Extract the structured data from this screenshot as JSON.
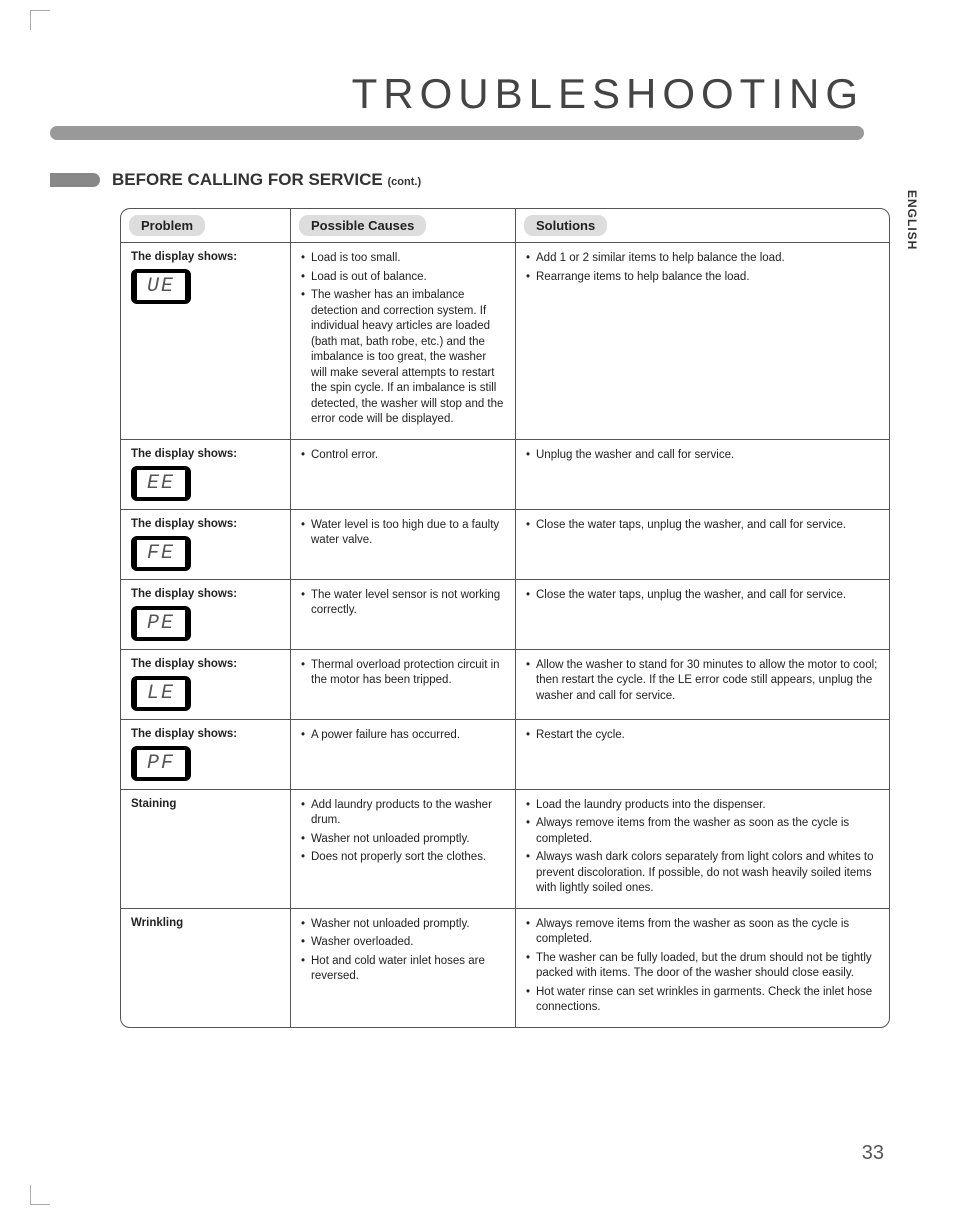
{
  "page": {
    "title": "TROUBLESHOOTING",
    "section_title": "BEFORE CALLING FOR SERVICE",
    "section_cont": "(cont.)",
    "side_tab": "ENGLISH",
    "page_number": "33"
  },
  "table": {
    "headers": {
      "problem": "Problem",
      "causes": "Possible Causes",
      "solutions": "Solutions"
    },
    "rows": [
      {
        "problem_label": "The display shows:",
        "error_code": "UE",
        "causes": [
          "Load is too small.",
          "Load is out of balance.",
          "The washer has an imbalance detection and correction system. If individual heavy articles are loaded (bath mat, bath robe, etc.) and the imbalance is too great, the washer will make several attempts to restart the spin cycle. If an imbalance is still detected, the washer will stop and the error code will be displayed."
        ],
        "solutions": [
          "Add 1 or 2 similar items to help balance the load.",
          "Rearrange items to help balance the load."
        ]
      },
      {
        "problem_label": "The display shows:",
        "error_code": "EE",
        "causes": [
          "Control error."
        ],
        "solutions": [
          "Unplug the washer and call for service."
        ]
      },
      {
        "problem_label": "The display shows:",
        "error_code": "FE",
        "causes": [
          "Water level is too high due to a faulty water valve."
        ],
        "solutions": [
          "Close the water taps, unplug the washer, and call for service."
        ]
      },
      {
        "problem_label": "The display shows:",
        "error_code": "PE",
        "causes": [
          "The water level sensor is not working correctly."
        ],
        "solutions": [
          "Close the water taps, unplug the washer, and call for service."
        ]
      },
      {
        "problem_label": "The display shows:",
        "error_code": "LE",
        "causes": [
          "Thermal overload protection circuit in the motor has been tripped."
        ],
        "solutions": [
          "Allow the washer to stand for 30 minutes to allow the motor to cool; then restart the cycle. If the LE error code still appears, unplug the washer and call for service."
        ]
      },
      {
        "problem_label": "The display shows:",
        "error_code": "PF",
        "causes": [
          "A power failure has occurred."
        ],
        "solutions": [
          "Restart the cycle."
        ]
      },
      {
        "problem_label": "Staining",
        "error_code": "",
        "causes": [
          "Add laundry products to the washer drum.",
          "Washer not unloaded promptly.",
          "Does not properly sort the clothes."
        ],
        "solutions": [
          "Load the laundry products into the dispenser.",
          "Always remove items from the washer as soon as the cycle is completed.",
          "Always wash dark colors separately from light colors and whites to prevent discoloration. If possible, do not wash heavily soiled items with lightly soiled ones."
        ]
      },
      {
        "problem_label": "Wrinkling",
        "error_code": "",
        "causes": [
          "Washer not unloaded promptly.",
          "Washer overloaded.",
          "Hot and cold water inlet hoses are reversed."
        ],
        "solutions": [
          "Always remove items from the washer as soon as the cycle is completed.",
          "The washer can be fully loaded, but the drum should not be tightly packed with items. The door of the washer should close easily.",
          "Hot water rinse can set wrinkles in garments. Check the inlet hose connections."
        ]
      }
    ]
  }
}
